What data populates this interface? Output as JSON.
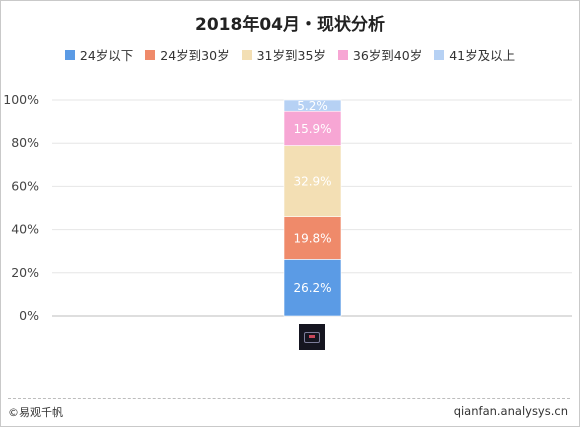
{
  "chart_data": {
    "type": "bar",
    "stacked": true,
    "title": "2018年04月・现状分析",
    "categories": [
      ""
    ],
    "series": [
      {
        "name": "24岁以下",
        "values": [
          26.2
        ],
        "color": "#5b9be5",
        "label": "26.2%"
      },
      {
        "name": "24岁到30岁",
        "values": [
          19.8
        ],
        "color": "#ef8a6a",
        "label": "19.8%"
      },
      {
        "name": "31岁到35岁",
        "values": [
          32.9
        ],
        "color": "#f3dfb4",
        "label": "32.9%"
      },
      {
        "name": "36岁到40岁",
        "values": [
          15.9
        ],
        "color": "#f7a6d4",
        "label": "15.9%"
      },
      {
        "name": "41岁及以上",
        "values": [
          5.2
        ],
        "color": "#b6d1f4",
        "label": "5.2%"
      }
    ],
    "yticks": [
      "0%",
      "20%",
      "40%",
      "60%",
      "80%",
      "100%"
    ],
    "ylim": [
      0,
      100
    ],
    "grid": true,
    "legend": "top"
  },
  "footer": {
    "source": "©易观千帆",
    "website": "qianfan.analysys.cn"
  },
  "category_icon": "app-icon"
}
